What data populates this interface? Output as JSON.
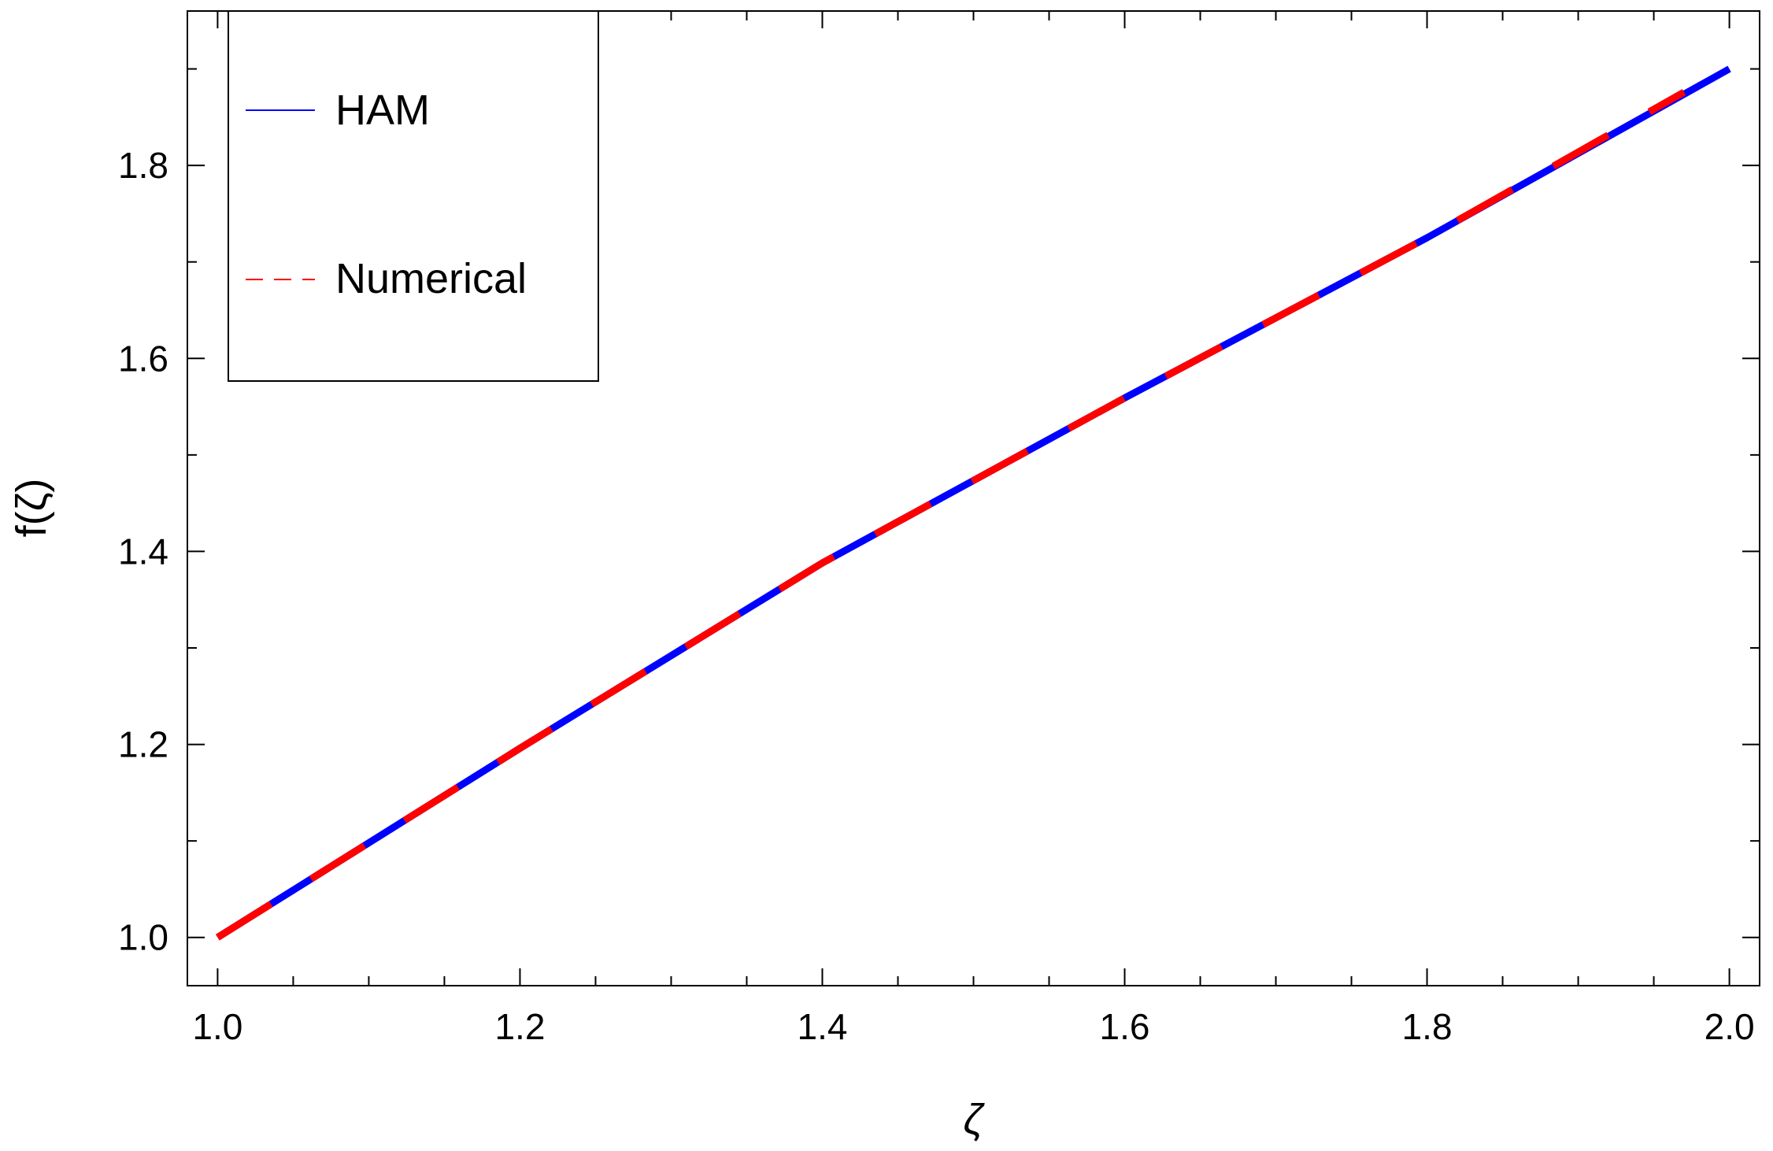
{
  "chart_data": {
    "type": "line",
    "xlabel": "ζ",
    "ylabel": "f(ζ)",
    "xlim": [
      0.98,
      2.02
    ],
    "ylim": [
      0.95,
      1.96
    ],
    "x_ticks": [
      "1.0",
      "1.2",
      "1.4",
      "1.6",
      "1.8",
      "2.0"
    ],
    "x_tick_values": [
      1.0,
      1.2,
      1.4,
      1.6,
      1.8,
      2.0
    ],
    "y_ticks": [
      "1.0",
      "1.2",
      "1.4",
      "1.6",
      "1.8"
    ],
    "y_tick_values": [
      1.0,
      1.2,
      1.4,
      1.6,
      1.8
    ],
    "grid": false,
    "legend_position": "top-left",
    "series": [
      {
        "name": "HAM",
        "color": "#0000ff",
        "style": "solid",
        "x": [
          1.0,
          1.2,
          1.4,
          1.6,
          1.8,
          2.0
        ],
        "y": [
          1.0,
          1.196,
          1.388,
          1.559,
          1.725,
          1.9
        ]
      },
      {
        "name": "Numerical",
        "color": "#ff0000",
        "style": "dashed",
        "x": [
          1.0,
          1.2,
          1.4,
          1.6,
          1.8,
          1.97
        ],
        "y": [
          1.0,
          1.196,
          1.388,
          1.559,
          1.725,
          1.876
        ]
      }
    ]
  }
}
